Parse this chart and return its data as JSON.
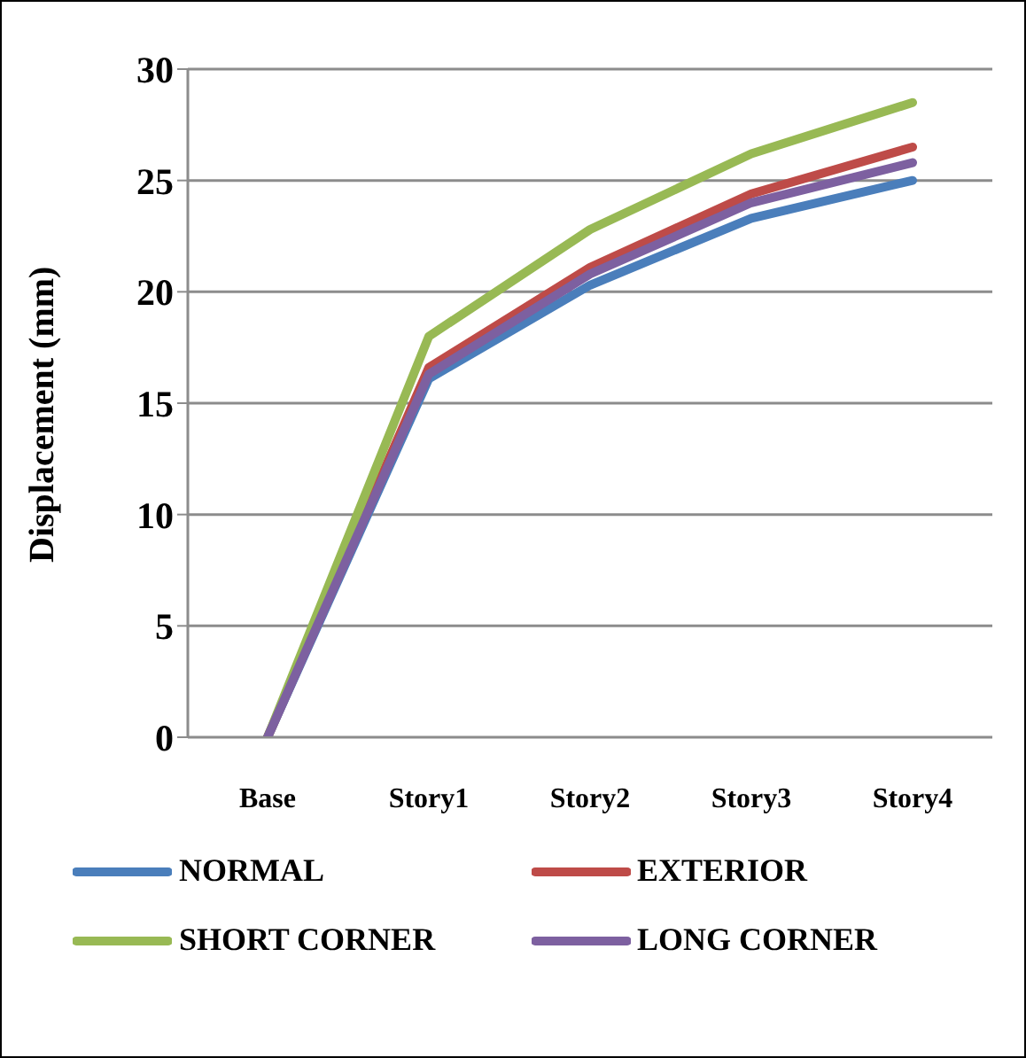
{
  "chart_data": {
    "type": "line",
    "ylabel": "Displacement (mm)",
    "categories": [
      "Base",
      "Story1",
      "Story2",
      "Story3",
      "Story4"
    ],
    "series": [
      {
        "name": "NORMAL",
        "color": "#4a7ebb",
        "values": [
          0,
          16.1,
          20.3,
          23.3,
          25.0
        ]
      },
      {
        "name": "EXTERIOR",
        "color": "#be4b48",
        "values": [
          0,
          16.6,
          21.1,
          24.4,
          26.5
        ]
      },
      {
        "name": "SHORT CORNER",
        "color": "#98b954",
        "values": [
          0,
          18.0,
          22.8,
          26.2,
          28.5
        ]
      },
      {
        "name": "LONG CORNER",
        "color": "#7d60a0",
        "values": [
          0,
          16.3,
          20.8,
          24.0,
          25.8
        ]
      }
    ],
    "ylim": [
      0,
      30
    ],
    "yticks": [
      0,
      5,
      10,
      15,
      20,
      25,
      30
    ],
    "grid": "y",
    "legend": "bottom",
    "marker": "none",
    "line_style": "solid"
  }
}
